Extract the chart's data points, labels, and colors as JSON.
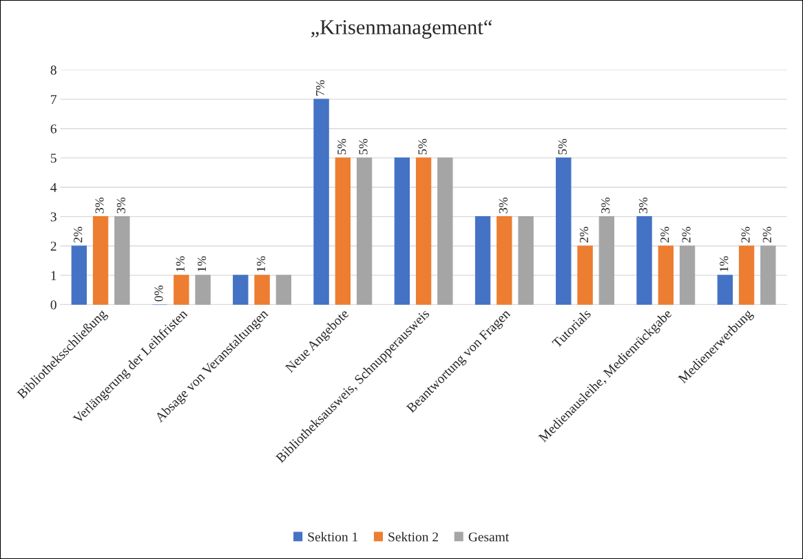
{
  "chart_data": {
    "type": "bar",
    "title": "„Krisenmanagement“",
    "categories": [
      "Bibliotheksschließung",
      "Verlängerung der Leihfristen",
      "Absage von Veranstaltungen",
      "Neue Angebote",
      "Bibliotheksausweis, Schnupperausweis",
      "Beantwortung von Fragen",
      "Tutorials",
      "Medienausleihe, Medienrückgabe",
      "Medienerwerbung"
    ],
    "series": [
      {
        "name": "Sektion 1",
        "color": "#4472c4",
        "values": [
          2,
          0,
          1,
          7,
          5,
          3,
          5,
          3,
          1
        ],
        "value_labels": [
          "2%",
          "0%",
          null,
          "7%",
          null,
          null,
          "5%",
          "3%",
          "1%"
        ]
      },
      {
        "name": "Sektion 2",
        "color": "#ed7d31",
        "values": [
          3,
          1,
          1,
          5,
          5,
          3,
          2,
          2,
          2
        ],
        "value_labels": [
          "3%",
          "1%",
          "1%",
          "5%",
          "5%",
          "3%",
          "2%",
          "2%",
          "2%"
        ]
      },
      {
        "name": "Gesamt",
        "color": "#a5a5a5",
        "values": [
          3,
          1,
          1,
          5,
          5,
          3,
          3,
          2,
          2
        ],
        "value_labels": [
          "3%",
          "1%",
          null,
          "5%",
          null,
          null,
          "3%",
          "2%",
          "2%"
        ]
      }
    ],
    "ylim": [
      0,
      8
    ],
    "yticks": [
      0,
      1,
      2,
      3,
      4,
      5,
      6,
      7,
      8
    ],
    "grid": "y",
    "legend": "bottom"
  }
}
